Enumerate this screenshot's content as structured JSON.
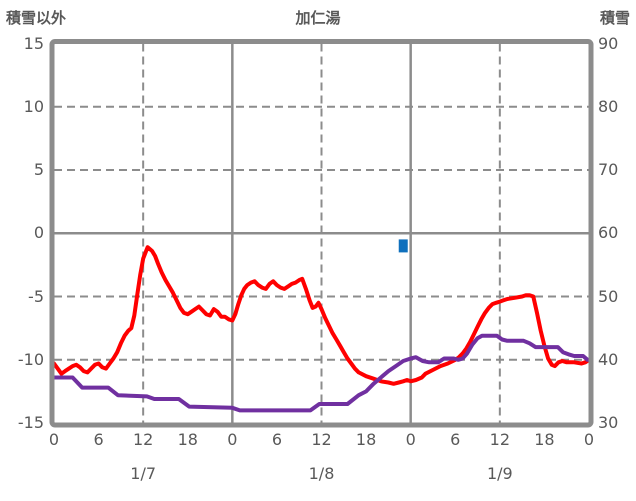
{
  "header": {
    "left_axis_label": "積雪以外",
    "title": "加仁湯",
    "right_axis_label": "積雪"
  },
  "chart_data": {
    "type": "line",
    "title": "加仁湯",
    "x_axis": {
      "range_hours": [
        0,
        72
      ],
      "tick_hours": [
        0,
        6,
        12,
        18,
        24,
        30,
        36,
        42,
        48,
        54,
        60,
        66,
        72
      ],
      "tick_labels": [
        "0",
        "6",
        "12",
        "18",
        "0",
        "6",
        "12",
        "18",
        "0",
        "6",
        "12",
        "18",
        "0"
      ],
      "day_label_hours": [
        12,
        36,
        60
      ],
      "day_labels": [
        "1/7",
        "1/8",
        "1/9"
      ]
    },
    "y_left": {
      "label": "積雪以外",
      "range": [
        -15,
        15
      ],
      "ticks": [
        15,
        10,
        5,
        0,
        -5,
        -10,
        -15
      ],
      "tick_labels": [
        "15",
        "10",
        "5",
        "0",
        "-5",
        "-10",
        "-15"
      ]
    },
    "y_right": {
      "label": "積雪",
      "range": [
        30,
        90
      ],
      "ticks": [
        90,
        80,
        70,
        60,
        50,
        40,
        30
      ],
      "tick_labels": [
        "90",
        "80",
        "70",
        "60",
        "50",
        "40",
        "30"
      ]
    },
    "grid": {
      "v_dashed_hours": [
        12,
        36,
        60
      ],
      "v_solid_hours": [
        24,
        48
      ],
      "h_dashed_values": [
        10,
        5,
        -5,
        -10
      ],
      "h_solid_values": [
        0
      ]
    },
    "colors": {
      "frame": "#8c8c8c",
      "grid": "#8c8c8c",
      "text": "#595959",
      "red_series": "#ff0000",
      "purple_series": "#7030a0",
      "snow_marker": "#0f70bd"
    },
    "series": [
      {
        "name": "temperature-red",
        "axis": "left",
        "color": "#ff0000",
        "points": [
          [
            0,
            -10.3
          ],
          [
            0.5,
            -10.7
          ],
          [
            1,
            -11.1
          ],
          [
            1.5,
            -10.9
          ],
          [
            2,
            -10.7
          ],
          [
            2.5,
            -10.5
          ],
          [
            3,
            -10.4
          ],
          [
            3.5,
            -10.6
          ],
          [
            4,
            -10.9
          ],
          [
            4.5,
            -11.0
          ],
          [
            5,
            -10.7
          ],
          [
            5.5,
            -10.4
          ],
          [
            6,
            -10.3
          ],
          [
            6.5,
            -10.6
          ],
          [
            7,
            -10.7
          ],
          [
            7.5,
            -10.3
          ],
          [
            8,
            -9.9
          ],
          [
            8.5,
            -9.4
          ],
          [
            9,
            -8.7
          ],
          [
            9.5,
            -8.1
          ],
          [
            10,
            -7.7
          ],
          [
            10.4,
            -7.5
          ],
          [
            10.8,
            -6.5
          ],
          [
            11.2,
            -4.9
          ],
          [
            11.6,
            -3.3
          ],
          [
            12,
            -2.0
          ],
          [
            12.6,
            -1.1
          ],
          [
            13.2,
            -1.4
          ],
          [
            13.6,
            -1.8
          ],
          [
            14,
            -2.4
          ],
          [
            14.5,
            -3.1
          ],
          [
            15,
            -3.7
          ],
          [
            15.5,
            -4.2
          ],
          [
            16,
            -4.7
          ],
          [
            16.5,
            -5.3
          ],
          [
            17,
            -5.9
          ],
          [
            17.5,
            -6.3
          ],
          [
            18,
            -6.4
          ],
          [
            18.5,
            -6.2
          ],
          [
            19,
            -6.0
          ],
          [
            19.5,
            -5.8
          ],
          [
            20,
            -6.1
          ],
          [
            20.5,
            -6.4
          ],
          [
            21,
            -6.5
          ],
          [
            21.5,
            -6.0
          ],
          [
            22,
            -6.2
          ],
          [
            22.5,
            -6.6
          ],
          [
            23,
            -6.6
          ],
          [
            23.5,
            -6.8
          ],
          [
            24,
            -6.9
          ],
          [
            24.4,
            -6.4
          ],
          [
            24.8,
            -5.6
          ],
          [
            25.2,
            -4.9
          ],
          [
            25.6,
            -4.4
          ],
          [
            26,
            -4.1
          ],
          [
            26.5,
            -3.9
          ],
          [
            27,
            -3.8
          ],
          [
            27.5,
            -4.1
          ],
          [
            28,
            -4.3
          ],
          [
            28.5,
            -4.4
          ],
          [
            29,
            -4.0
          ],
          [
            29.5,
            -3.8
          ],
          [
            30,
            -4.1
          ],
          [
            30.5,
            -4.3
          ],
          [
            31,
            -4.4
          ],
          [
            31.5,
            -4.2
          ],
          [
            32,
            -4.0
          ],
          [
            32.5,
            -3.9
          ],
          [
            33,
            -3.7
          ],
          [
            33.4,
            -3.6
          ],
          [
            33.9,
            -4.4
          ],
          [
            34.4,
            -5.3
          ],
          [
            34.8,
            -5.9
          ],
          [
            35.2,
            -5.8
          ],
          [
            35.6,
            -5.5
          ],
          [
            36,
            -6.0
          ],
          [
            36.5,
            -6.7
          ],
          [
            37,
            -7.3
          ],
          [
            37.5,
            -7.9
          ],
          [
            38,
            -8.4
          ],
          [
            38.5,
            -8.9
          ],
          [
            39,
            -9.4
          ],
          [
            39.5,
            -9.9
          ],
          [
            40,
            -10.3
          ],
          [
            40.5,
            -10.7
          ],
          [
            41,
            -11.0
          ],
          [
            42,
            -11.3
          ],
          [
            43,
            -11.5
          ],
          [
            44,
            -11.7
          ],
          [
            45,
            -11.8
          ],
          [
            45.7,
            -11.9
          ],
          [
            46.4,
            -11.8
          ],
          [
            47,
            -11.7
          ],
          [
            47.5,
            -11.6
          ],
          [
            48,
            -11.7
          ],
          [
            48.7,
            -11.6
          ],
          [
            49.5,
            -11.4
          ],
          [
            50,
            -11.1
          ],
          [
            51,
            -10.8
          ],
          [
            52,
            -10.5
          ],
          [
            53,
            -10.3
          ],
          [
            54,
            -10.0
          ],
          [
            54.5,
            -9.8
          ],
          [
            55,
            -9.5
          ],
          [
            55.5,
            -9.1
          ],
          [
            56,
            -8.6
          ],
          [
            56.5,
            -8.0
          ],
          [
            57,
            -7.4
          ],
          [
            57.5,
            -6.8
          ],
          [
            58,
            -6.3
          ],
          [
            58.5,
            -5.9
          ],
          [
            59,
            -5.6
          ],
          [
            59.5,
            -5.5
          ],
          [
            60,
            -5.4
          ],
          [
            60.5,
            -5.3
          ],
          [
            61,
            -5.2
          ],
          [
            62,
            -5.1
          ],
          [
            63,
            -5.0
          ],
          [
            63.5,
            -4.9
          ],
          [
            64,
            -4.9
          ],
          [
            64.5,
            -5.0
          ],
          [
            65,
            -6.3
          ],
          [
            65.5,
            -7.7
          ],
          [
            66,
            -8.9
          ],
          [
            66.5,
            -9.9
          ],
          [
            67,
            -10.4
          ],
          [
            67.4,
            -10.5
          ],
          [
            67.9,
            -10.2
          ],
          [
            68.4,
            -10.1
          ],
          [
            69,
            -10.2
          ],
          [
            70,
            -10.2
          ],
          [
            71,
            -10.3
          ],
          [
            71.5,
            -10.2
          ],
          [
            72,
            -10.0
          ]
        ]
      },
      {
        "name": "temperature-purple",
        "axis": "left",
        "color": "#7030a0",
        "points": [
          [
            0,
            -11.4
          ],
          [
            2.5,
            -11.4
          ],
          [
            3.8,
            -12.2
          ],
          [
            7.3,
            -12.2
          ],
          [
            8.6,
            -12.8
          ],
          [
            12.5,
            -12.9
          ],
          [
            13.5,
            -13.1
          ],
          [
            16.8,
            -13.1
          ],
          [
            18.2,
            -13.7
          ],
          [
            24,
            -13.8
          ],
          [
            25,
            -14.0
          ],
          [
            34.5,
            -14.0
          ],
          [
            35.7,
            -13.5
          ],
          [
            39.5,
            -13.5
          ],
          [
            41,
            -12.8
          ],
          [
            42,
            -12.5
          ],
          [
            43,
            -11.9
          ],
          [
            44,
            -11.4
          ],
          [
            45,
            -10.9
          ],
          [
            46,
            -10.5
          ],
          [
            47,
            -10.1
          ],
          [
            48,
            -9.9
          ],
          [
            48.7,
            -9.8
          ],
          [
            49.6,
            -10.1
          ],
          [
            50.5,
            -10.2
          ],
          [
            51.7,
            -10.2
          ],
          [
            52.5,
            -9.9
          ],
          [
            53.8,
            -9.9
          ],
          [
            54.4,
            -10.0
          ],
          [
            55,
            -9.9
          ],
          [
            55.6,
            -9.5
          ],
          [
            56.3,
            -8.8
          ],
          [
            57,
            -8.3
          ],
          [
            57.6,
            -8.1
          ],
          [
            59.6,
            -8.1
          ],
          [
            60.3,
            -8.4
          ],
          [
            61,
            -8.5
          ],
          [
            63.2,
            -8.5
          ],
          [
            64,
            -8.7
          ],
          [
            64.8,
            -9.0
          ],
          [
            67.8,
            -9.0
          ],
          [
            68.5,
            -9.4
          ],
          [
            69.4,
            -9.6
          ],
          [
            70,
            -9.7
          ],
          [
            71.2,
            -9.7
          ],
          [
            71.8,
            -10.0
          ],
          [
            72,
            -10.0
          ]
        ]
      },
      {
        "name": "snow-depth",
        "axis": "right",
        "color": "#0f70bd",
        "marker": "square",
        "points": [
          [
            47,
            58
          ]
        ]
      }
    ]
  }
}
